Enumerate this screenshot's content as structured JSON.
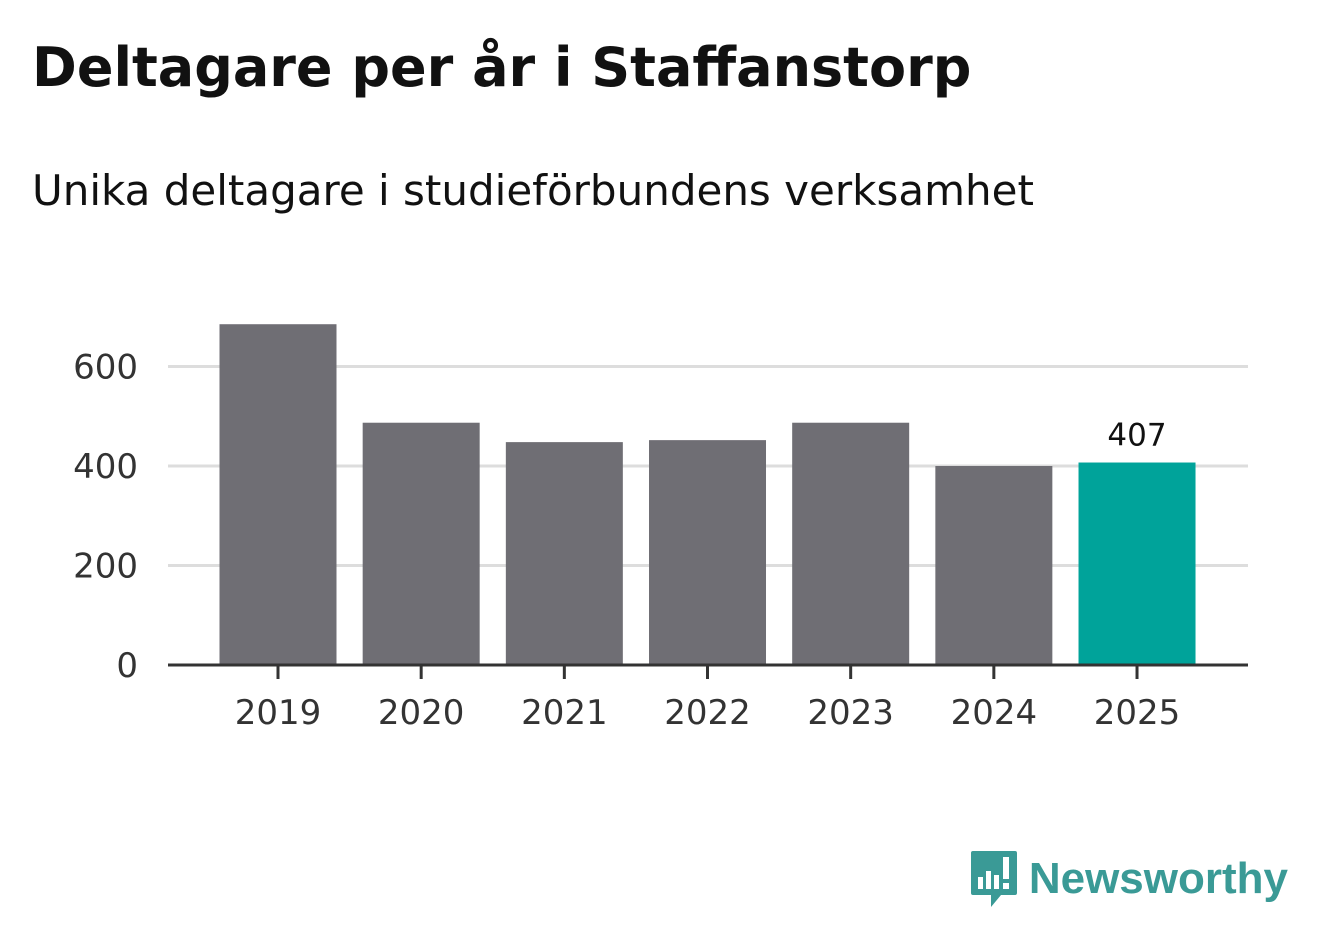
{
  "title": "Deltagare per år i Staffanstorp",
  "subtitle": "Unika deltagare i studieförbundens verksamhet",
  "logo": {
    "text": "Newsworthy",
    "icon": "newsworthy-chart-bubble-icon"
  },
  "colors": {
    "bar": "#6f6e74",
    "highlight": "#00a39a",
    "grid": "#dddddd",
    "axis": "#333333",
    "brand": "#3a9a96"
  },
  "chart_data": {
    "type": "bar",
    "title": "Deltagare per år i Staffanstorp",
    "subtitle": "Unika deltagare i studieförbundens verksamhet",
    "categories": [
      "2019",
      "2020",
      "2021",
      "2022",
      "2023",
      "2024",
      "2025"
    ],
    "values": [
      685,
      487,
      448,
      452,
      487,
      400,
      407
    ],
    "highlight_index": 6,
    "data_labels": [
      {
        "index": 6,
        "text": "407"
      }
    ],
    "ylim": [
      0,
      700
    ],
    "yticks": [
      0,
      200,
      400,
      600
    ],
    "ytick_labels": [
      "0",
      "200",
      "400",
      "600"
    ],
    "grid": true,
    "xlabel": "",
    "ylabel": "",
    "legend": "none"
  }
}
